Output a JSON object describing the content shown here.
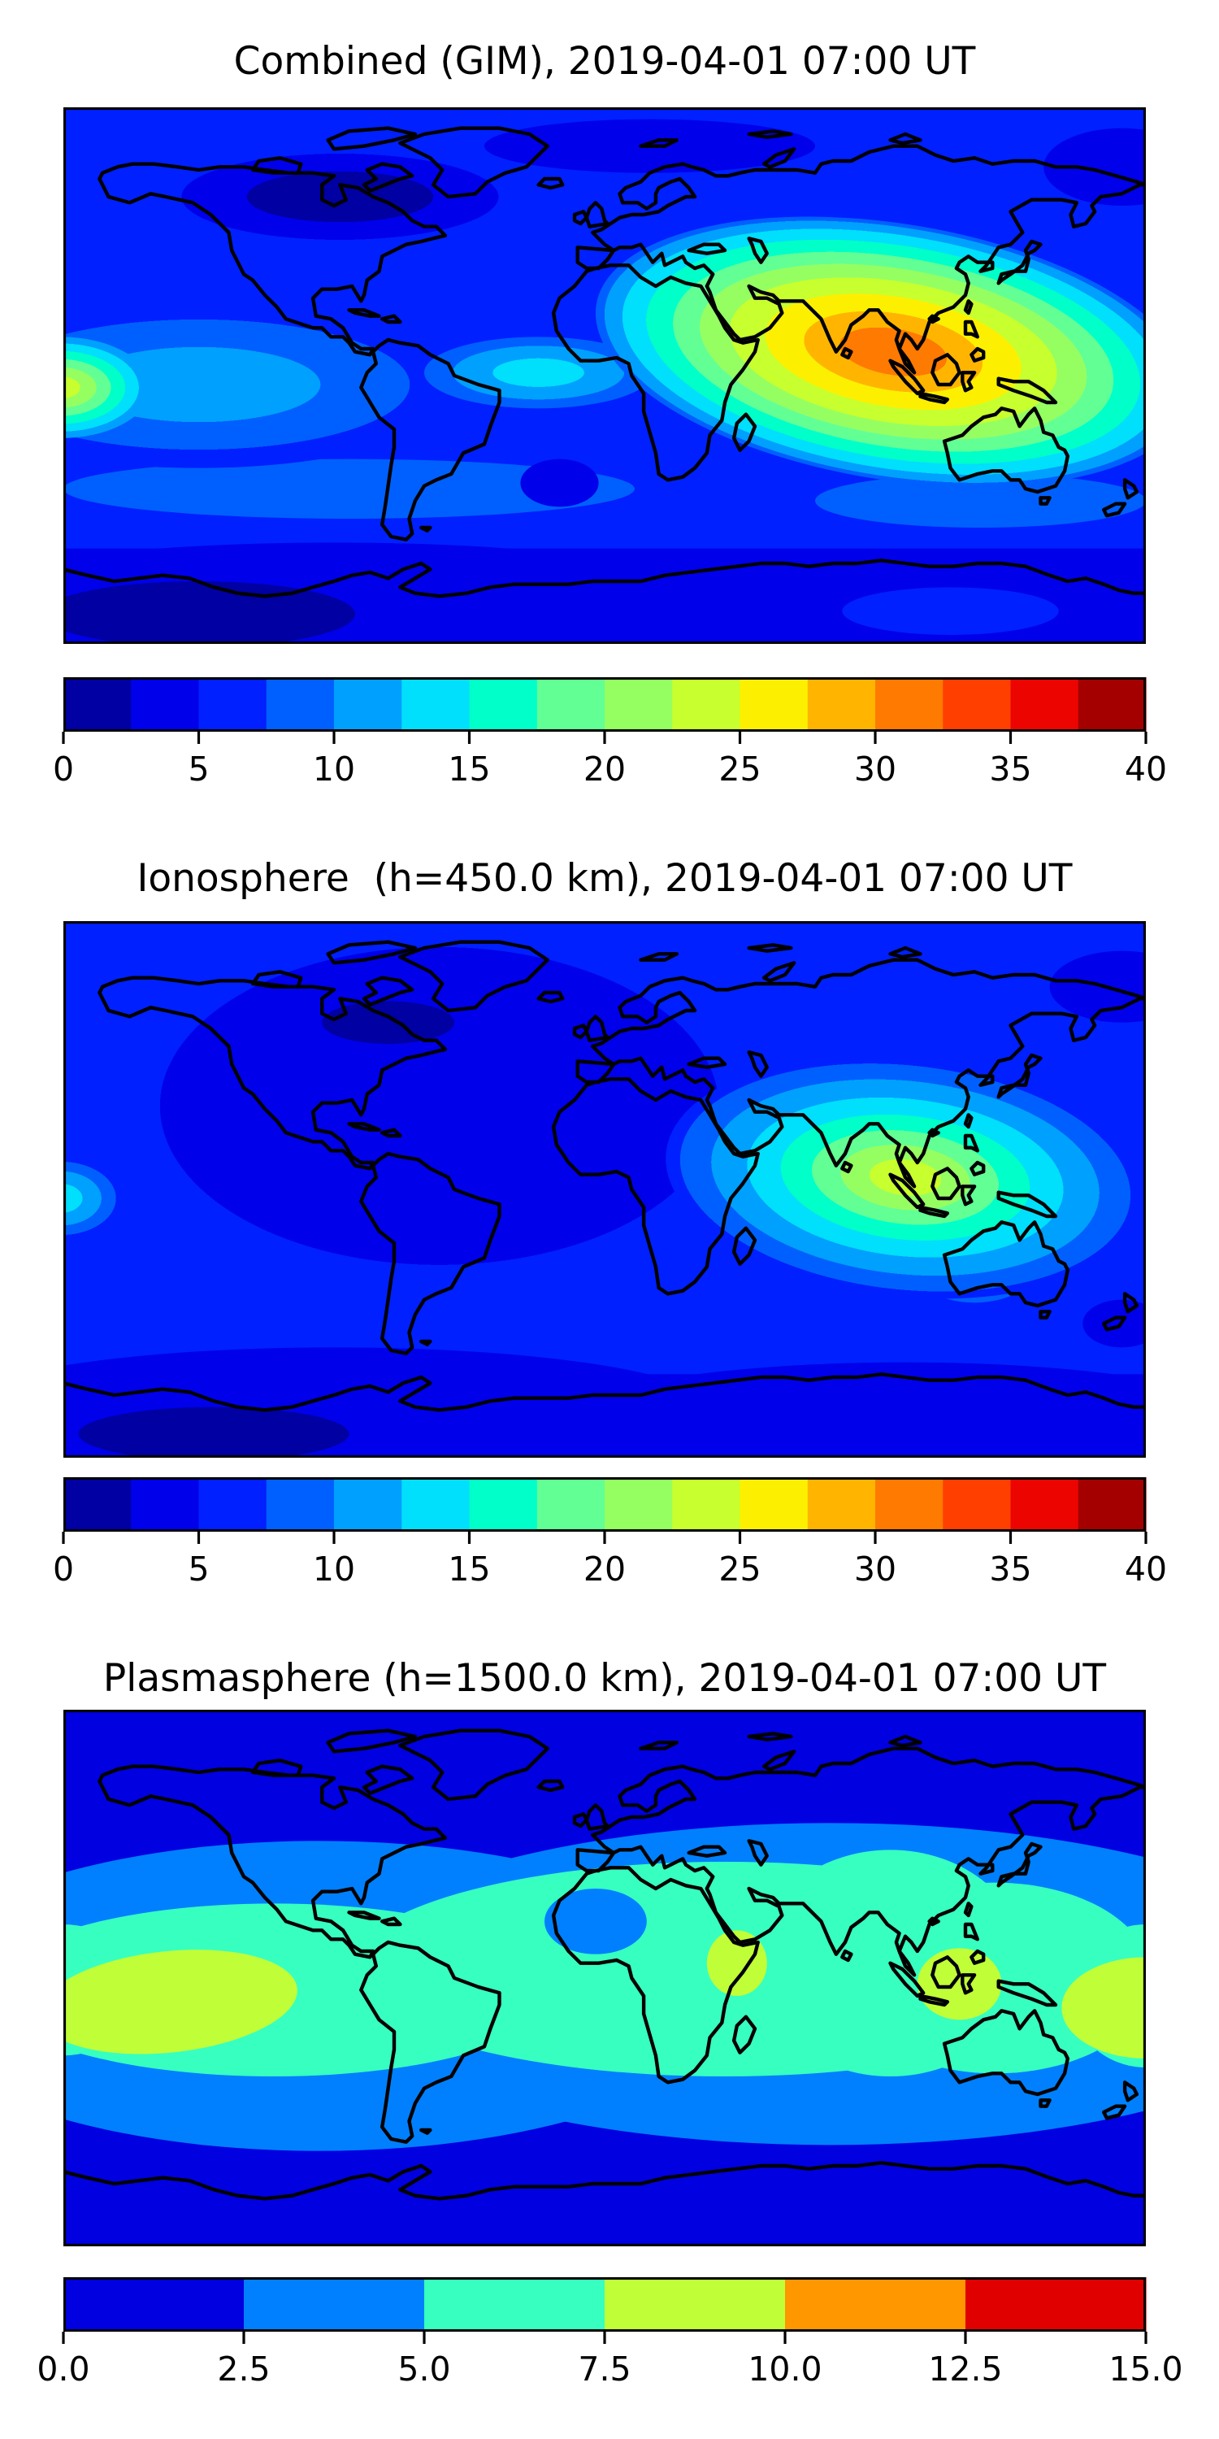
{
  "page": {
    "background": "#ffffff",
    "figure_type": "three-panel filled-contour world maps with horizontal colorbars",
    "text_color": "#000000"
  },
  "chart_data": [
    {
      "type": "heatmap",
      "subtype": "filled_contour_world_map",
      "title": "Combined (GIM), 2019-04-01 07:00 UT",
      "extent": {
        "lon": [
          -180,
          180
        ],
        "lat": [
          -90,
          90
        ]
      },
      "levels": {
        "min": 0,
        "max": 40,
        "step": 2.5,
        "n_bands": 16
      },
      "colormap": "jet",
      "band_colors": [
        "#0000a3",
        "#0000eb",
        "#0020ff",
        "#0060ff",
        "#00a0ff",
        "#00dffc",
        "#00ffc9",
        "#62ff95",
        "#95ff62",
        "#c8ff2e",
        "#fcf000",
        "#ffb500",
        "#ff7a00",
        "#ff3f00",
        "#ec0400",
        "#a40000"
      ],
      "colorbar_ticks": [
        "0",
        "5",
        "10",
        "15",
        "20",
        "25",
        "30",
        "35",
        "40"
      ],
      "background_value_color": "#0020ff",
      "features": [
        {
          "name": "antarctic-low-band",
          "shape": "latband",
          "lat1": -58,
          "lat2": -90,
          "rings": [
            [
              1,
              "#0000eb"
            ]
          ]
        },
        {
          "name": "antarctic-low-west",
          "shape": "ellipse",
          "lon": -90,
          "lat": -72,
          "rx": 120,
          "ry": 16,
          "rings": [
            [
              1,
              "#0000eb"
            ]
          ]
        },
        {
          "name": "antarctic-low-east",
          "shape": "ellipse",
          "lon": 90,
          "lat": -74,
          "rx": 120,
          "ry": 14,
          "rings": [
            [
              1,
              "#0000eb"
            ]
          ]
        },
        {
          "name": "antarctic-min-patch",
          "shape": "ellipse",
          "lon": -135,
          "lat": -80,
          "rx": 52,
          "ry": 11,
          "rings": [
            [
              1,
              "#0000a3"
            ]
          ]
        },
        {
          "name": "antarctic-lighter-patch",
          "shape": "ellipse",
          "lon": 115,
          "lat": -79,
          "rx": 36,
          "ry": 8,
          "rings": [
            [
              1,
              "#0020ff"
            ]
          ]
        },
        {
          "name": "south-midlat-band-west",
          "shape": "ellipse",
          "lon": -85,
          "lat": -38,
          "rx": 95,
          "ry": 10,
          "rings": [
            [
              1,
              "#0060ff"
            ]
          ]
        },
        {
          "name": "south-midlat-band-east",
          "shape": "ellipse",
          "lon": 125,
          "lat": -42,
          "rx": 55,
          "ry": 9,
          "rings": [
            [
              1,
              "#0060ff"
            ]
          ]
        },
        {
          "name": "south-atlantic-dip",
          "shape": "ellipse",
          "lon": -15,
          "lat": -36,
          "rx": 13,
          "ry": 8,
          "rings": [
            [
              1,
              "#0000eb"
            ]
          ]
        },
        {
          "name": "north-america-minimum",
          "shape": "ellipse",
          "lon": -88,
          "lat": 60,
          "rx": 62,
          "ry": 17,
          "rings": [
            [
              0.5,
              "#0000a3"
            ],
            [
              0.85,
              "#0000eb"
            ],
            [
              1,
              "#0020ff"
            ]
          ]
        },
        {
          "name": "north-europe-low-strip",
          "shape": "ellipse",
          "lon": 15,
          "lat": 77,
          "rx": 55,
          "ry": 9,
          "rings": [
            [
              1,
              "#0000eb"
            ]
          ]
        },
        {
          "name": "bering-low-strip",
          "shape": "ellipse",
          "lon": 172,
          "lat": 70,
          "rx": 26,
          "ry": 13,
          "rings": [
            [
              1,
              "#0000eb"
            ]
          ]
        },
        {
          "name": "pacific-equatorial-enhancement",
          "shape": "ellipse",
          "lon": -135,
          "lat": -3,
          "rx": 90,
          "ry": 28,
          "rings": [
            [
              0.45,
              "#00a0ff"
            ],
            [
              0.78,
              "#0060ff"
            ],
            [
              1,
              "#0020ff"
            ]
          ]
        },
        {
          "name": "atlantic-equatorial-enhancement",
          "shape": "ellipse",
          "lon": -22,
          "lat": 1,
          "rx": 38,
          "ry": 12,
          "rings": [
            [
              0.4,
              "#00dffc"
            ],
            [
              0.75,
              "#00a0ff"
            ],
            [
              1,
              "#0060ff"
            ]
          ]
        },
        {
          "name": "dateline-hotspot",
          "shape": "ellipse",
          "lon": -181,
          "lat": -4,
          "rx": 30,
          "ry": 17,
          "rings": [
            [
              0.22,
              "#c8ff2e"
            ],
            [
              0.4,
              "#95ff62"
            ],
            [
              0.56,
              "#62ff95"
            ],
            [
              0.72,
              "#00ffc9"
            ],
            [
              0.87,
              "#00dffc"
            ],
            [
              1,
              "#00a0ff"
            ]
          ]
        },
        {
          "name": "south-asia-hotspot-max",
          "shape": "ellipse",
          "lon": 96,
          "lat": 8,
          "rx": 100,
          "ry": 43,
          "rot": 9,
          "rings": [
            [
              0.18,
              "#ff7a00"
            ],
            [
              0.3,
              "#ffb500"
            ],
            [
              0.43,
              "#fcf000"
            ],
            [
              0.55,
              "#c8ff2e"
            ],
            [
              0.65,
              "#95ff62"
            ],
            [
              0.74,
              "#62ff95"
            ],
            [
              0.83,
              "#00ffc9"
            ],
            [
              0.91,
              "#00dffc"
            ],
            [
              0.97,
              "#00a0ff"
            ],
            [
              1,
              "#0060ff"
            ]
          ]
        }
      ]
    },
    {
      "type": "heatmap",
      "subtype": "filled_contour_world_map",
      "title": "Ionosphere  (h=450.0 km), 2019-04-01 07:00 UT",
      "extent": {
        "lon": [
          -180,
          180
        ],
        "lat": [
          -90,
          90
        ]
      },
      "levels": {
        "min": 0,
        "max": 40,
        "step": 2.5,
        "n_bands": 16
      },
      "colormap": "jet",
      "band_colors": [
        "#0000a3",
        "#0000eb",
        "#0020ff",
        "#0060ff",
        "#00a0ff",
        "#00dffc",
        "#00ffc9",
        "#62ff95",
        "#95ff62",
        "#c8ff2e",
        "#fcf000",
        "#ffb500",
        "#ff7a00",
        "#ff3f00",
        "#ec0400",
        "#a40000"
      ],
      "colorbar_ticks": [
        "0",
        "5",
        "10",
        "15",
        "20",
        "25",
        "30",
        "35",
        "40"
      ],
      "background_value_color": "#0020ff",
      "features": [
        {
          "name": "antarctic-low-band",
          "shape": "latband",
          "lat1": -62,
          "lat2": -90,
          "rings": [
            [
              1,
              "#0000eb"
            ]
          ]
        },
        {
          "name": "antarctic-low-west",
          "shape": "ellipse",
          "lon": -90,
          "lat": -73,
          "rx": 125,
          "ry": 20,
          "rings": [
            [
              1,
              "#0000eb"
            ]
          ]
        },
        {
          "name": "antarctic-low-east",
          "shape": "ellipse",
          "lon": 100,
          "lat": -76,
          "rx": 110,
          "ry": 18,
          "rings": [
            [
              1,
              "#0000eb"
            ]
          ]
        },
        {
          "name": "antarctic-min-patch",
          "shape": "ellipse",
          "lon": -130,
          "lat": -82,
          "rx": 45,
          "ry": 9,
          "rings": [
            [
              1,
              "#0000a3"
            ]
          ]
        },
        {
          "name": "west-hemisphere-minimum",
          "shape": "ellipse",
          "lon": -55,
          "lat": 28,
          "rx": 108,
          "ry": 62,
          "rings": [
            [
              0.86,
              "#0000eb"
            ],
            [
              1,
              "#0020ff"
            ]
          ]
        },
        {
          "name": "canada-deep-minimum",
          "shape": "ellipse",
          "lon": -72,
          "lat": 56,
          "rx": 40,
          "ry": 13,
          "rings": [
            [
              0.55,
              "#0000a3"
            ],
            [
              1,
              "#0000eb"
            ]
          ]
        },
        {
          "name": "bering-low-strip",
          "shape": "ellipse",
          "lon": 172,
          "lat": 68,
          "rx": 24,
          "ry": 12,
          "rings": [
            [
              1,
              "#0000eb"
            ]
          ]
        },
        {
          "name": "southeast-of-nz-dip",
          "shape": "ellipse",
          "lon": 172,
          "lat": -45,
          "rx": 13,
          "ry": 8,
          "rings": [
            [
              1,
              "#0000eb"
            ]
          ]
        },
        {
          "name": "australia-tongue",
          "shape": "ellipse",
          "lon": 123,
          "lat": -21,
          "rx": 24,
          "ry": 17,
          "rings": [
            [
              0.4,
              "#00dffc"
            ],
            [
              0.75,
              "#00a0ff"
            ],
            [
              1,
              "#0060ff"
            ]
          ]
        },
        {
          "name": "dateline-enhancement",
          "shape": "ellipse",
          "lon": -181,
          "lat": -3,
          "rx": 21,
          "ry": 14,
          "rings": [
            [
              0.35,
              "#00dffc"
            ],
            [
              0.65,
              "#00a0ff"
            ],
            [
              0.88,
              "#0060ff"
            ],
            [
              1,
              "#0020ff"
            ]
          ]
        },
        {
          "name": "south-asia-hotspot-max",
          "shape": "ellipse",
          "lon": 100,
          "lat": 4,
          "rx": 80,
          "ry": 40,
          "rot": 6,
          "rings": [
            [
              0.15,
              "#c8ff2e"
            ],
            [
              0.27,
              "#95ff62"
            ],
            [
              0.39,
              "#62ff95"
            ],
            [
              0.52,
              "#00ffc9"
            ],
            [
              0.66,
              "#00dffc"
            ],
            [
              0.81,
              "#00a0ff"
            ],
            [
              0.94,
              "#0060ff"
            ],
            [
              1,
              "#0020ff"
            ]
          ]
        }
      ]
    },
    {
      "type": "heatmap",
      "subtype": "filled_contour_world_map",
      "title": "Plasmasphere (h=1500.0 km), 2019-04-01 07:00 UT",
      "extent": {
        "lon": [
          -180,
          180
        ],
        "lat": [
          -90,
          90
        ]
      },
      "levels": {
        "min": 0,
        "max": 15,
        "step": 2.5,
        "n_bands": 6
      },
      "colormap": "jet",
      "band_colors": [
        "#0000e0",
        "#0080ff",
        "#37ffc0",
        "#c0ff37",
        "#ff9700",
        "#e00000"
      ],
      "colorbar_ticks": [
        "0.0",
        "2.5",
        "5.0",
        "7.5",
        "10.0",
        "12.5",
        "15.0"
      ],
      "background_value_color": "#0000e0",
      "features": [
        {
          "name": "midlat-band-west",
          "shape": "ellipse",
          "lon": -95,
          "lat": -6,
          "rx": 140,
          "ry": 52,
          "rings": [
            [
              1,
              "#0080ff"
            ]
          ]
        },
        {
          "name": "midlat-band-east",
          "shape": "ellipse",
          "lon": 75,
          "lat": -2,
          "rx": 170,
          "ry": 54,
          "rings": [
            [
              1,
              "#0080ff"
            ]
          ]
        },
        {
          "name": "midlat-band-left-edge",
          "shape": "ellipse",
          "lon": -180,
          "lat": -5,
          "rx": 35,
          "ry": 30,
          "rings": [
            [
              1,
              "#0080ff"
            ]
          ]
        },
        {
          "name": "midlat-band-right-edge",
          "shape": "ellipse",
          "lon": 180,
          "lat": -8,
          "rx": 35,
          "ry": 32,
          "rings": [
            [
              1,
              "#0080ff"
            ]
          ]
        },
        {
          "name": "equatorial-band-west",
          "shape": "ellipse",
          "lon": -110,
          "lat": -4,
          "rx": 95,
          "ry": 29,
          "rings": [
            [
              1,
              "#37ffc0"
            ]
          ]
        },
        {
          "name": "equatorial-band-central",
          "shape": "ellipse",
          "lon": 40,
          "lat": 3,
          "rx": 125,
          "ry": 36,
          "rings": [
            [
              1,
              "#37ffc0"
            ]
          ]
        },
        {
          "name": "equatorial-band-central-asia",
          "shape": "ellipse",
          "lon": 95,
          "lat": 5,
          "rx": 45,
          "ry": 38,
          "rings": [
            [
              1,
              "#37ffc0"
            ]
          ]
        },
        {
          "name": "equatorial-band-east-asia",
          "shape": "ellipse",
          "lon": 130,
          "lat": 0,
          "rx": 52,
          "ry": 32,
          "rings": [
            [
              1,
              "#37ffc0"
            ]
          ]
        },
        {
          "name": "equatorial-band-left-edge",
          "shape": "ellipse",
          "lon": -180,
          "lat": -4,
          "rx": 25,
          "ry": 22,
          "rings": [
            [
              1,
              "#37ffc0"
            ]
          ]
        },
        {
          "name": "equatorial-band-right-edge",
          "shape": "ellipse",
          "lon": 180,
          "lat": -6,
          "rx": 25,
          "ry": 24,
          "rings": [
            [
              1,
              "#37ffc0"
            ]
          ]
        },
        {
          "name": "sahara-dip",
          "shape": "ellipse",
          "lon": -3,
          "lat": 19,
          "rx": 17,
          "ry": 11,
          "rings": [
            [
              1,
              "#0080ff"
            ]
          ]
        },
        {
          "name": "pacific-high-patch",
          "shape": "ellipse",
          "lon": -145,
          "lat": -8,
          "rx": 43,
          "ry": 17,
          "rot": -6,
          "rings": [
            [
              1,
              "#c0ff37"
            ]
          ]
        },
        {
          "name": "horn-of-africa-high-patch",
          "shape": "ellipse",
          "lon": 44,
          "lat": 5,
          "rx": 10,
          "ry": 11,
          "rings": [
            [
              1,
              "#c0ff37"
            ]
          ]
        },
        {
          "name": "indonesia-high-patch",
          "shape": "ellipse",
          "lon": 118,
          "lat": -2,
          "rx": 14,
          "ry": 12,
          "rings": [
            [
              1,
              "#c0ff37"
            ]
          ]
        },
        {
          "name": "dateline-high-patch",
          "shape": "ellipse",
          "lon": 180,
          "lat": -10,
          "rx": 28,
          "ry": 17,
          "rings": [
            [
              1,
              "#c0ff37"
            ]
          ]
        }
      ]
    }
  ]
}
